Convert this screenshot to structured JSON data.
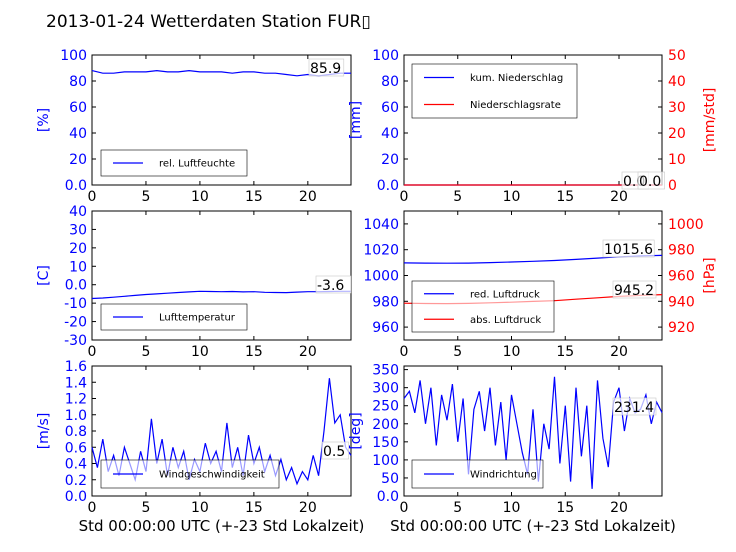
{
  "page": {
    "title": "2013-01-24 Wetterdaten Station FUR▯"
  },
  "colors": {
    "primary": "#0000ff",
    "secondary": "#ff0000",
    "axis": "#000000",
    "background": "#ffffff"
  },
  "chart_data": [
    {
      "type": "line",
      "ylabel": "[%]",
      "xlim": [
        0,
        24
      ],
      "ylim": [
        0,
        100
      ],
      "xticks": [
        0,
        5,
        10,
        15,
        20
      ],
      "yticks": [
        0,
        20,
        40,
        60,
        80,
        100
      ],
      "current_value_label": "85.9",
      "legend": {
        "placement": "lower-left"
      },
      "series": [
        {
          "name": "rel. Luftfeuchte",
          "color": "#0000ff",
          "x": [
            0,
            1,
            2,
            3,
            4,
            5,
            6,
            7,
            8,
            9,
            10,
            11,
            12,
            13,
            14,
            15,
            16,
            17,
            18,
            19,
            20,
            21,
            22,
            23,
            24
          ],
          "y": [
            88,
            86,
            86,
            87,
            87,
            87,
            88,
            87,
            87,
            88,
            87,
            87,
            87,
            86,
            87,
            87,
            86,
            86,
            85,
            84,
            85,
            84,
            85,
            86,
            86
          ]
        }
      ]
    },
    {
      "type": "line",
      "ylabel": "[mm]",
      "ylabel_right": "[mm/std]",
      "xlim": [
        0,
        24
      ],
      "ylim": [
        0,
        100
      ],
      "ylim_right": [
        0,
        50
      ],
      "xticks": [
        0,
        5,
        10,
        15,
        20
      ],
      "yticks": [
        0,
        20,
        40,
        60,
        80,
        100
      ],
      "yticks_right": [
        0,
        10,
        20,
        30,
        40,
        50
      ],
      "current_value_labels": [
        "0.0",
        "0.0"
      ],
      "legend": {
        "placement": "top-left"
      },
      "series": [
        {
          "name": "kum. Niederschlag",
          "color": "#0000ff",
          "axis": "left",
          "x": [
            0,
            24
          ],
          "y": [
            0,
            0
          ]
        },
        {
          "name": "Niederschlagsrate",
          "color": "#ff0000",
          "axis": "right",
          "x": [
            0,
            24
          ],
          "y": [
            0,
            0
          ]
        }
      ]
    },
    {
      "type": "line",
      "ylabel": "[C]",
      "xlim": [
        0,
        24
      ],
      "ylim": [
        -30,
        40
      ],
      "xticks": [
        0,
        5,
        10,
        15,
        20
      ],
      "yticks": [
        -30,
        -20,
        -10,
        0,
        10,
        20,
        30,
        40
      ],
      "current_value_label": "-3.6",
      "legend": {
        "placement": "lower-left"
      },
      "series": [
        {
          "name": "Lufttemperatur",
          "color": "#0000ff",
          "x": [
            0,
            1,
            2,
            3,
            4,
            5,
            6,
            7,
            8,
            9,
            10,
            11,
            12,
            13,
            14,
            15,
            16,
            17,
            18,
            19,
            20,
            21,
            22,
            23,
            24
          ],
          "y": [
            -7.5,
            -7.2,
            -6.8,
            -6.3,
            -5.8,
            -5.3,
            -5.0,
            -4.6,
            -4.2,
            -3.9,
            -3.6,
            -3.7,
            -3.8,
            -3.7,
            -3.9,
            -3.8,
            -4.1,
            -4.2,
            -4.3,
            -4.0,
            -3.8,
            -3.8,
            -3.7,
            -3.6,
            -3.6
          ]
        }
      ]
    },
    {
      "type": "line",
      "ylabel_right": "[hPa]",
      "xlim": [
        0,
        24
      ],
      "ylim": [
        950,
        1050
      ],
      "ylim_right": [
        910,
        1010
      ],
      "xticks": [
        0,
        5,
        10,
        15,
        20
      ],
      "yticks": [
        960,
        980,
        1000,
        1020,
        1040
      ],
      "yticks_right": [
        920,
        940,
        960,
        980,
        1000
      ],
      "current_value_labels": [
        "1015.6",
        "945.2"
      ],
      "legend": {
        "placement": "lower-left"
      },
      "series": [
        {
          "name": "red. Luftdruck",
          "color": "#0000ff",
          "axis": "left",
          "x": [
            0,
            2,
            4,
            6,
            8,
            10,
            12,
            14,
            16,
            18,
            20,
            22,
            24
          ],
          "y": [
            1009.8,
            1009.6,
            1009.5,
            1009.6,
            1010.0,
            1010.5,
            1011.0,
            1011.6,
            1012.5,
            1013.5,
            1014.5,
            1015.2,
            1015.6
          ]
        },
        {
          "name": "abs. Luftdruck",
          "color": "#ff0000",
          "axis": "right",
          "x": [
            0,
            2,
            4,
            6,
            8,
            10,
            12,
            14,
            16,
            18,
            20,
            22,
            24
          ],
          "y": [
            938.5,
            938.3,
            938.2,
            938.4,
            938.8,
            939.3,
            939.9,
            940.5,
            941.6,
            942.7,
            943.8,
            944.6,
            945.2
          ]
        }
      ]
    },
    {
      "type": "line",
      "ylabel": "[m/s]",
      "xlabel": "Std 00:00:00 UTC (+-23 Std Lokalzeit)",
      "xlim": [
        0,
        24
      ],
      "ylim": [
        0,
        1.6
      ],
      "xticks": [
        0,
        5,
        10,
        15,
        20
      ],
      "yticks": [
        0.0,
        0.2,
        0.4,
        0.6,
        0.8,
        1.0,
        1.2,
        1.4,
        1.6
      ],
      "current_value_label": "0.5",
      "legend": {
        "placement": "lower-left"
      },
      "series": [
        {
          "name": "Windgeschwindigkeit",
          "color": "#0000ff",
          "x": [
            0,
            0.5,
            1,
            1.5,
            2,
            2.5,
            3,
            3.5,
            4,
            4.5,
            5,
            5.5,
            6,
            6.5,
            7,
            7.5,
            8,
            8.5,
            9,
            9.5,
            10,
            10.5,
            11,
            11.5,
            12,
            12.5,
            13,
            13.5,
            14,
            14.5,
            15,
            15.5,
            16,
            16.5,
            17,
            17.5,
            18,
            18.5,
            19,
            19.5,
            20,
            20.5,
            21,
            21.5,
            22,
            22.5,
            23,
            23.5,
            24
          ],
          "y": [
            0.6,
            0.35,
            0.7,
            0.3,
            0.5,
            0.25,
            0.6,
            0.4,
            0.2,
            0.55,
            0.3,
            0.95,
            0.4,
            0.7,
            0.25,
            0.6,
            0.35,
            0.55,
            0.2,
            0.45,
            0.3,
            0.65,
            0.4,
            0.55,
            0.3,
            0.9,
            0.35,
            0.6,
            0.25,
            0.75,
            0.4,
            0.6,
            0.3,
            0.5,
            0.25,
            0.45,
            0.2,
            0.35,
            0.15,
            0.3,
            0.2,
            0.5,
            0.25,
            0.8,
            1.45,
            0.9,
            1.0,
            0.6,
            0.5
          ]
        }
      ]
    },
    {
      "type": "line",
      "ylabel": "[deg]",
      "xlabel": "Std 00:00:00 UTC (+-23 Std Lokalzeit)",
      "xlim": [
        0,
        24
      ],
      "ylim": [
        0,
        360
      ],
      "xticks": [
        0,
        5,
        10,
        15,
        20
      ],
      "yticks": [
        0,
        50,
        100,
        150,
        200,
        250,
        300,
        350
      ],
      "current_value_label": "231.4",
      "legend": {
        "placement": "lower-left"
      },
      "series": [
        {
          "name": "Windrichtung",
          "color": "#0000ff",
          "x": [
            0,
            0.5,
            1,
            1.5,
            2,
            2.5,
            3,
            3.5,
            4,
            4.5,
            5,
            5.5,
            6,
            6.5,
            7,
            7.5,
            8,
            8.5,
            9,
            9.5,
            10,
            10.5,
            11,
            11.5,
            12,
            12.5,
            13,
            13.5,
            14,
            14.5,
            15,
            15.5,
            16,
            16.5,
            17,
            17.5,
            18,
            18.5,
            19,
            19.5,
            20,
            20.5,
            21,
            21.5,
            22,
            22.5,
            23,
            23.5,
            24
          ],
          "y": [
            270,
            290,
            230,
            320,
            200,
            300,
            140,
            280,
            210,
            310,
            150,
            270,
            60,
            240,
            290,
            180,
            300,
            140,
            260,
            100,
            280,
            200,
            120,
            60,
            240,
            40,
            200,
            130,
            330,
            90,
            250,
            40,
            300,
            110,
            250,
            20,
            320,
            160,
            80,
            260,
            300,
            180,
            270,
            230,
            240,
            280,
            200,
            260,
            231
          ]
        }
      ]
    }
  ]
}
